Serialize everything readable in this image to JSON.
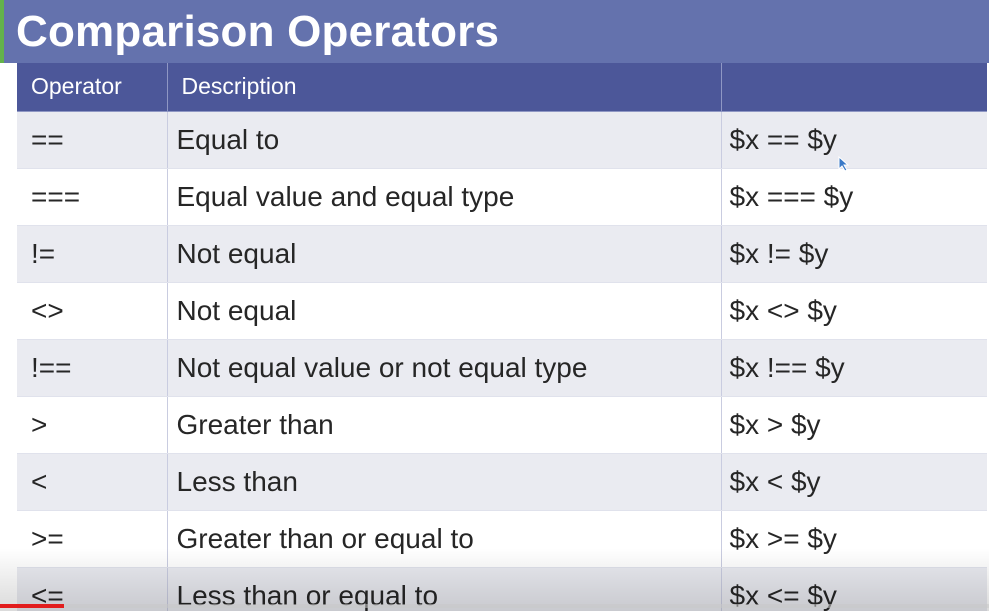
{
  "slide": {
    "title": "Comparison Operators"
  },
  "table": {
    "headers": [
      "Operator",
      "Description",
      ""
    ],
    "rows": [
      {
        "operator": "==",
        "description": "Equal to",
        "example": "$x == $y"
      },
      {
        "operator": "===",
        "description": "Equal value and equal type",
        "example": "$x === $y"
      },
      {
        "operator": "!=",
        "description": "Not equal",
        "example": "$x != $y"
      },
      {
        "operator": "<>",
        "description": "Not equal",
        "example": "$x <> $y"
      },
      {
        "operator": "!==",
        "description": "Not equal value or not equal type",
        "example": "$x !== $y"
      },
      {
        "operator": ">",
        "description": "Greater than",
        "example": "$x > $y"
      },
      {
        "operator": "<",
        "description": "Less than",
        "example": "$x < $y"
      },
      {
        "operator": ">=",
        "description": "Greater than or equal to",
        "example": "$x >= $y"
      },
      {
        "operator": "<=",
        "description": "Less than or equal to",
        "example": "$x <= $y"
      }
    ]
  },
  "video": {
    "progress_fraction": 0.065
  },
  "colors": {
    "title_bg": "#6472ad",
    "accent_green": "#63b24b",
    "header_bg": "#4c5799",
    "row_alt_bg": "#eaebf1",
    "progress_red": "#e21d1d"
  },
  "icons": {
    "cursor": "mouse-pointer-icon"
  }
}
